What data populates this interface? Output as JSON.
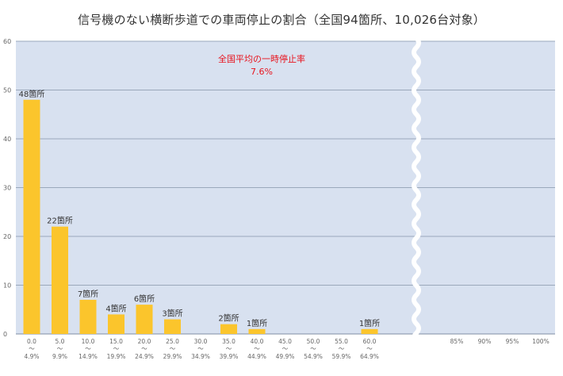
{
  "chart_data": {
    "type": "bar",
    "title": "信号機のない横断歩道での車両停止の割合（全国94箇所、10,026台対象）",
    "annotation": {
      "label": "全国平均の一時停止率",
      "value": "7.6%",
      "color": "#e8141e"
    },
    "ylim": [
      0,
      60
    ],
    "yticks": [
      "0",
      "10",
      "20",
      "30",
      "40",
      "50",
      "60"
    ],
    "grid": true,
    "axis_break": "between 60.0〜64.9% and 85%",
    "categories": [
      {
        "top": "0.0",
        "bottom": "4.9%"
      },
      {
        "top": "5.0",
        "bottom": "9.9%"
      },
      {
        "top": "10.0",
        "bottom": "14.9%"
      },
      {
        "top": "15.0",
        "bottom": "19.9%"
      },
      {
        "top": "20.0",
        "bottom": "24.9%"
      },
      {
        "top": "25.0",
        "bottom": "29.9%"
      },
      {
        "top": "30.0",
        "bottom": "34.9%"
      },
      {
        "top": "35.0",
        "bottom": "39.9%"
      },
      {
        "top": "40.0",
        "bottom": "44.9%"
      },
      {
        "top": "45.0",
        "bottom": "49.9%"
      },
      {
        "top": "50.0",
        "bottom": "54.9%"
      },
      {
        "top": "55.0",
        "bottom": "59.9%"
      },
      {
        "top": "60.0",
        "bottom": "64.9%"
      },
      {
        "top": "85%",
        "bottom": ""
      },
      {
        "top": "90%",
        "bottom": ""
      },
      {
        "top": "95%",
        "bottom": ""
      },
      {
        "top": "100%",
        "bottom": ""
      }
    ],
    "tilde": "〜",
    "values": [
      48,
      22,
      7,
      4,
      6,
      3,
      0,
      2,
      1,
      0,
      0,
      0,
      1,
      null,
      null,
      null,
      null
    ],
    "data_labels": [
      "48箇所",
      "22箇所",
      "7箇所",
      "4箇所",
      "6箇所",
      "3箇所",
      "",
      "2箇所",
      "1箇所",
      "",
      "",
      "",
      "1箇所",
      "",
      "",
      "",
      ""
    ],
    "colors": {
      "bar": "#fbc52c",
      "plot_background": "#d8e1f0",
      "grid": "#9aa8bb",
      "text": "#333333",
      "tick_text": "#666666"
    }
  }
}
